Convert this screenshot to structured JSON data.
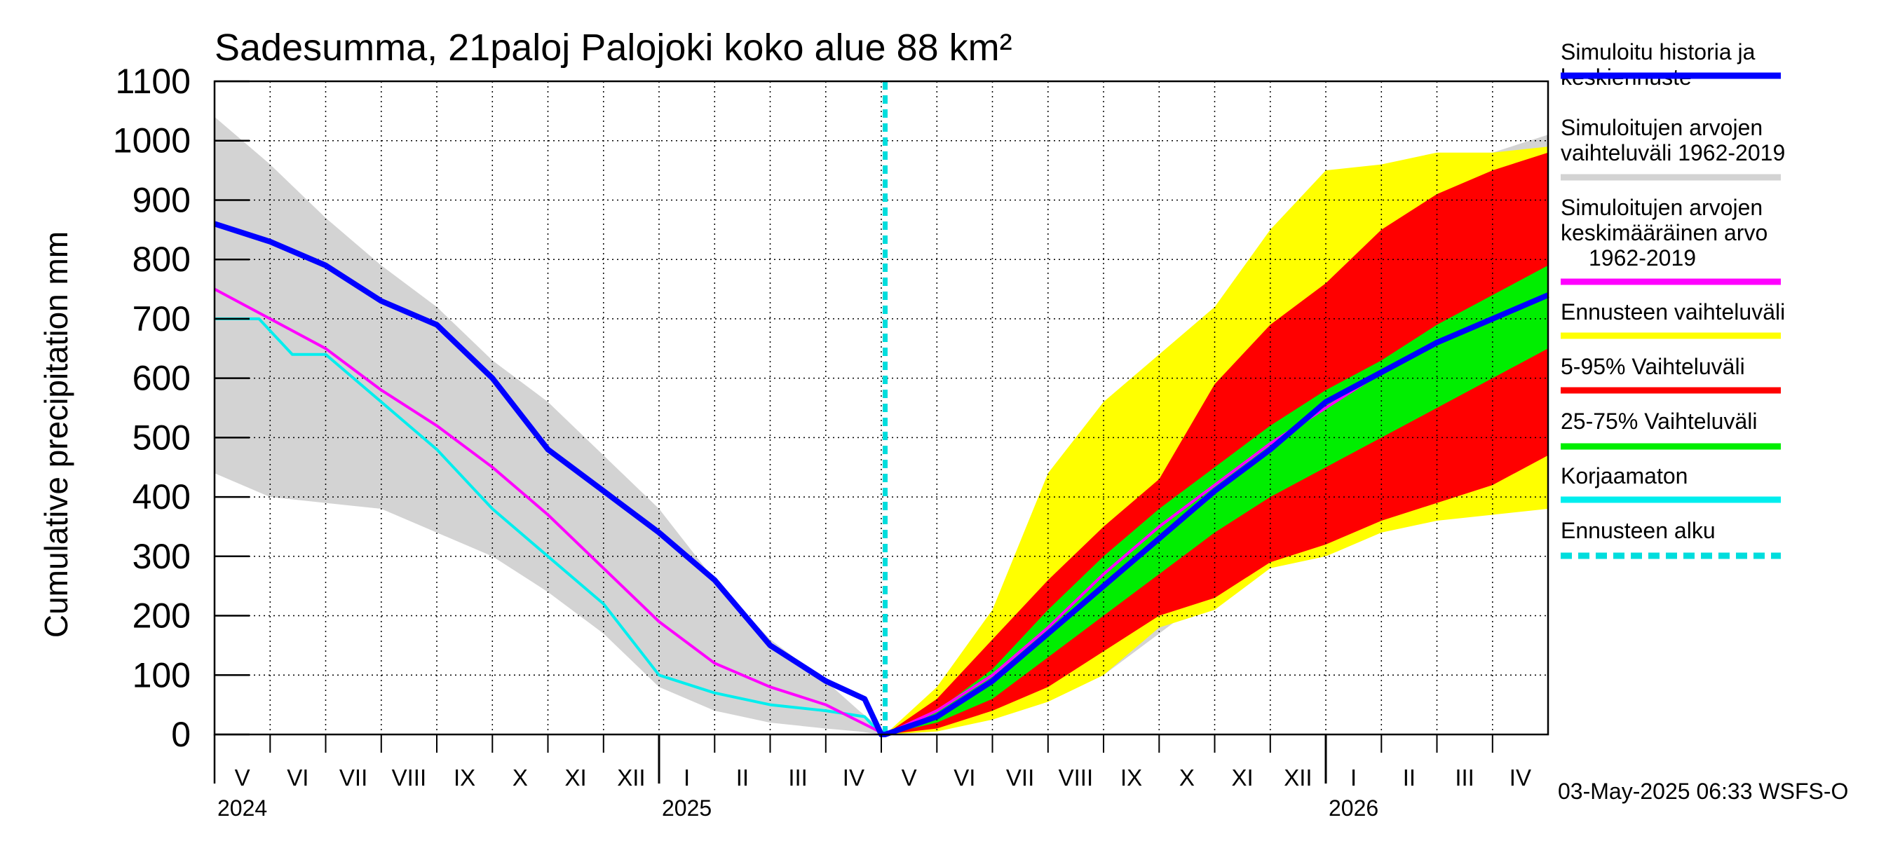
{
  "chart_data": {
    "type": "area",
    "title": "Sadesumma, 21paloj Palojoki koko alue 88 km²",
    "ylabel": "Cumulative precipitation   mm",
    "xlabel": "",
    "ylim": [
      0,
      1100
    ],
    "yticks": [
      "0",
      "100",
      "200",
      "300",
      "400",
      "500",
      "600",
      "700",
      "800",
      "900",
      "1000",
      "1100"
    ],
    "grid": true,
    "legend_position": "right",
    "timestamp": "03-May-2025 06:33 WSFS-O",
    "x_unit": "months since 2024-05-01",
    "xlim": [
      0,
      24
    ],
    "forecast_start": 12.07,
    "month_labels": [
      "V",
      "VI",
      "VII",
      "VIII",
      "IX",
      "X",
      "XI",
      "XII",
      "I",
      "II",
      "III",
      "IV",
      "V",
      "VI",
      "VII",
      "VIII",
      "IX",
      "X",
      "XI",
      "XII",
      "I",
      "II",
      "III",
      "IV"
    ],
    "year_labels": [
      {
        "label": "2024",
        "x": 0
      },
      {
        "label": "2025",
        "x": 8
      },
      {
        "label": "2026",
        "x": 20
      }
    ],
    "legend": [
      {
        "label": "Simuloitu historia ja keskiennuste",
        "color": "#0000ff",
        "style": "solid"
      },
      {
        "label": "Simuloitujen arvojen vaihteluväli 1962-2019",
        "color": "#d3d3d3",
        "style": "solid"
      },
      {
        "label": "Simuloitujen arvojen keskimääräinen arvo 1962-2019",
        "color": "#ff00ff",
        "style": "solid"
      },
      {
        "label": "Ennusteen vaihteluväli",
        "color": "#ffff00",
        "style": "solid"
      },
      {
        "label": "5-95% Vaihteluväli",
        "color": "#ff0000",
        "style": "solid"
      },
      {
        "label": "25-75% Vaihteluväli",
        "color": "#00ee00",
        "style": "solid"
      },
      {
        "label": "Korjaamaton",
        "color": "#00eeee",
        "style": "solid"
      },
      {
        "label": "Ennusteen alku",
        "color": "#00dddd",
        "style": "dashed"
      }
    ],
    "series": [
      {
        "name": "Simuloitujen arvojen vaihteluväli 1962-2019 (hist, upper)",
        "color": "#d3d3d3",
        "x": [
          0,
          1,
          2,
          3,
          4,
          5,
          6,
          7,
          8,
          9,
          10,
          11,
          11.6,
          12.0
        ],
        "values": [
          1040,
          960,
          870,
          790,
          720,
          630,
          560,
          470,
          380,
          260,
          160,
          90,
          40,
          10
        ]
      },
      {
        "name": "Simuloitujen arvojen vaihteluväli 1962-2019 (hist, lower)",
        "color": "#d3d3d3",
        "x": [
          0,
          1,
          2,
          3,
          4,
          5,
          6,
          7,
          8,
          9,
          10,
          11,
          11.6,
          12.0
        ],
        "values": [
          440,
          400,
          390,
          380,
          340,
          300,
          240,
          170,
          80,
          40,
          20,
          10,
          5,
          0
        ]
      },
      {
        "name": "Simuloitujen arvojen vaihteluväli 1962-2019 (forecast, upper)",
        "color": "#d3d3d3",
        "x": [
          12.07,
          13,
          14,
          15,
          16,
          17,
          18,
          19,
          20,
          21,
          22,
          23,
          24
        ],
        "values": [
          0,
          60,
          160,
          320,
          460,
          560,
          640,
          770,
          880,
          930,
          950,
          980,
          1010
        ]
      },
      {
        "name": "Simuloitujen arvojen vaihteluväli 1962-2019 (forecast, lower)",
        "color": "#d3d3d3",
        "x": [
          12.07,
          13,
          14,
          15,
          16,
          17,
          18,
          19,
          20,
          21,
          22,
          23,
          24
        ],
        "values": [
          0,
          10,
          30,
          60,
          100,
          170,
          240,
          280,
          310,
          360,
          380,
          400,
          430
        ]
      },
      {
        "name": "Ennusteen vaihteluväli (upper)",
        "color": "#ffff00",
        "x": [
          12.07,
          13,
          14,
          15,
          16,
          17,
          18,
          19,
          20,
          21,
          22,
          23,
          24
        ],
        "values": [
          0,
          80,
          210,
          440,
          560,
          640,
          720,
          850,
          950,
          960,
          980,
          980,
          990
        ]
      },
      {
        "name": "Ennusteen vaihteluväli (lower)",
        "color": "#ffff00",
        "x": [
          12.07,
          13,
          14,
          15,
          16,
          17,
          18,
          19,
          20,
          21,
          22,
          23,
          24
        ],
        "values": [
          0,
          5,
          25,
          55,
          100,
          180,
          210,
          280,
          300,
          340,
          360,
          370,
          380
        ]
      },
      {
        "name": "5-95% Vaihteluväli (upper)",
        "color": "#ff0000",
        "x": [
          12.07,
          13,
          14,
          15,
          16,
          17,
          18,
          19,
          20,
          21,
          22,
          23,
          24
        ],
        "values": [
          0,
          60,
          160,
          260,
          350,
          430,
          590,
          690,
          760,
          850,
          910,
          950,
          980
        ]
      },
      {
        "name": "5-95% Vaihteluväli (lower)",
        "color": "#ff0000",
        "x": [
          12.07,
          13,
          14,
          15,
          16,
          17,
          18,
          19,
          20,
          21,
          22,
          23,
          24
        ],
        "values": [
          0,
          10,
          40,
          80,
          140,
          200,
          230,
          290,
          320,
          360,
          390,
          420,
          470
        ]
      },
      {
        "name": "25-75% Vaihteluväli (upper)",
        "color": "#00ee00",
        "x": [
          12.07,
          13,
          14,
          15,
          16,
          17,
          18,
          19,
          20,
          21,
          22,
          23,
          24
        ],
        "values": [
          0,
          40,
          110,
          210,
          300,
          380,
          450,
          520,
          580,
          630,
          690,
          740,
          790
        ]
      },
      {
        "name": "25-75% Vaihteluväli (lower)",
        "color": "#00ee00",
        "x": [
          12.07,
          13,
          14,
          15,
          16,
          17,
          18,
          19,
          20,
          21,
          22,
          23,
          24
        ],
        "values": [
          0,
          20,
          60,
          130,
          200,
          270,
          340,
          400,
          450,
          500,
          550,
          600,
          650
        ]
      },
      {
        "name": "Simuloitujen arvojen keskimääräinen arvo 1962-2019",
        "color": "#ff00ff",
        "x": [
          0,
          1,
          2,
          3,
          4,
          5,
          6,
          7,
          8,
          9,
          10,
          11,
          12.07,
          13,
          14,
          15,
          16,
          17,
          18,
          19,
          20,
          21,
          22,
          23,
          24
        ],
        "values": [
          750,
          700,
          650,
          580,
          520,
          450,
          370,
          280,
          190,
          120,
          80,
          50,
          0,
          40,
          100,
          180,
          270,
          350,
          420,
          490,
          550,
          610,
          660,
          700,
          740
        ]
      },
      {
        "name": "Korjaamaton",
        "color": "#00eeee",
        "x": [
          0,
          0.8,
          1.4,
          2,
          3,
          4,
          5,
          6,
          7,
          8,
          9,
          10,
          11,
          11.7,
          12.0
        ],
        "values": [
          700,
          700,
          640,
          640,
          560,
          480,
          380,
          300,
          220,
          100,
          70,
          50,
          40,
          30,
          0
        ]
      },
      {
        "name": "Simuloitu historia ja keskiennuste",
        "color": "#0000ff",
        "x": [
          0,
          1,
          2,
          3,
          4,
          5,
          6,
          7,
          8,
          9,
          10,
          11,
          11.7,
          12.0,
          12.07,
          13,
          14,
          15,
          16,
          17,
          18,
          19,
          20,
          21,
          22,
          23,
          24
        ],
        "values": [
          860,
          830,
          790,
          730,
          690,
          600,
          480,
          410,
          340,
          260,
          150,
          90,
          60,
          0,
          0,
          30,
          90,
          170,
          250,
          330,
          410,
          480,
          560,
          610,
          660,
          700,
          740
        ]
      }
    ]
  }
}
